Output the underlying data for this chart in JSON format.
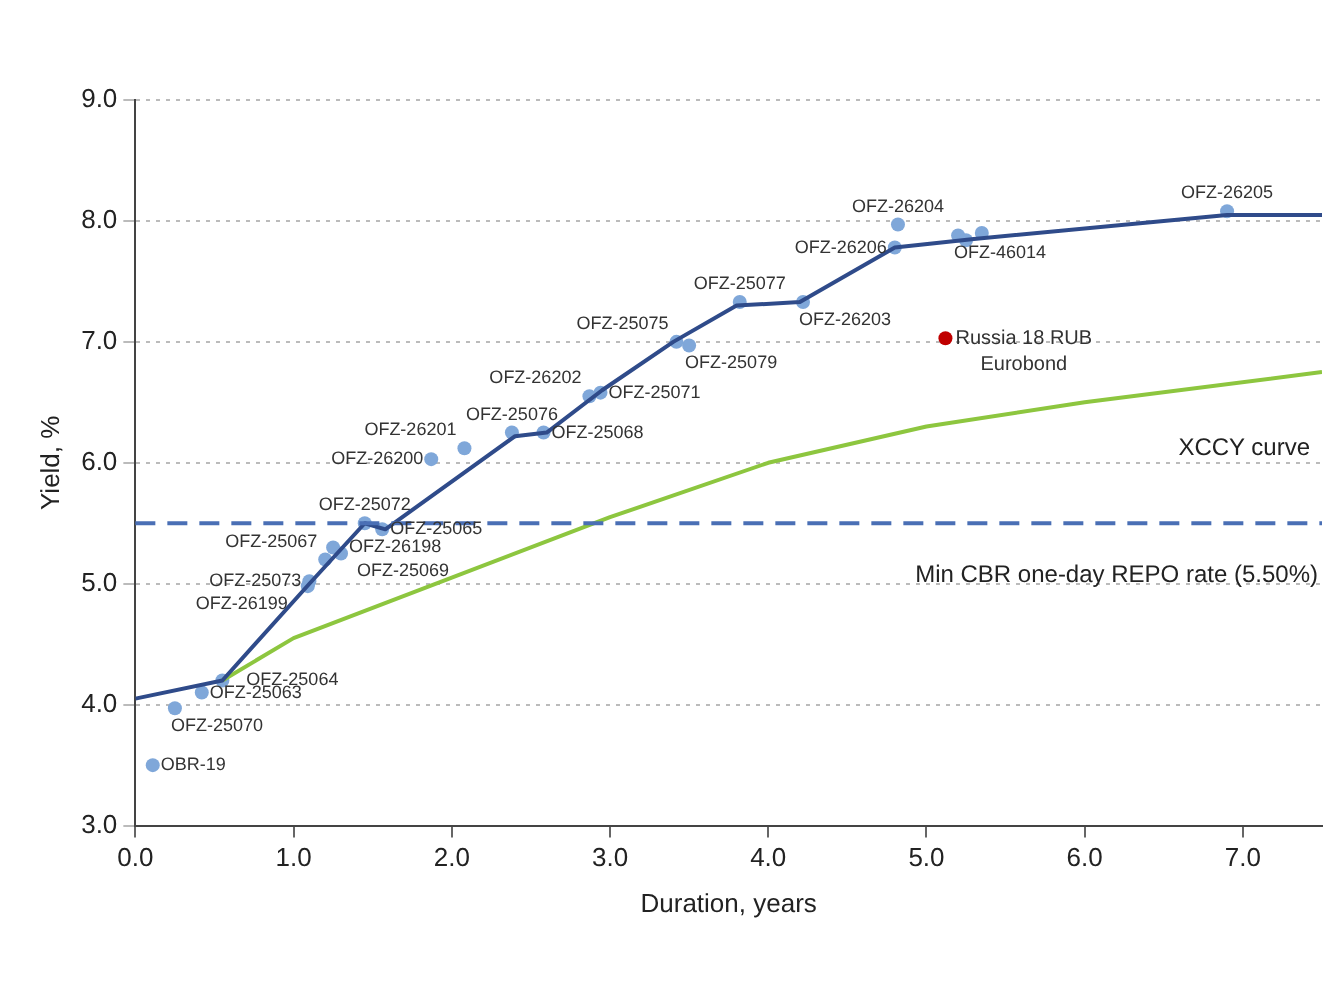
{
  "chart_data": {
    "type": "line",
    "xlabel": "Duration, years",
    "ylabel": "Yield, %",
    "xlim": [
      0,
      7.5
    ],
    "xticks": [
      {
        "value": 0,
        "label": "0.0"
      },
      {
        "value": 1,
        "label": "1.0"
      },
      {
        "value": 2,
        "label": "2.0"
      },
      {
        "value": 3,
        "label": "3.0"
      },
      {
        "value": 4,
        "label": "4.0"
      },
      {
        "value": 5,
        "label": "5.0"
      },
      {
        "value": 6,
        "label": "6.0"
      },
      {
        "value": 7,
        "label": "7.0"
      }
    ],
    "ylim": [
      3,
      9
    ],
    "yticks": [
      {
        "value": 3,
        "label": "3.0"
      },
      {
        "value": 4,
        "label": "4.0"
      },
      {
        "value": 5,
        "label": "5.0"
      },
      {
        "value": 6,
        "label": "6.0"
      },
      {
        "value": 7,
        "label": "7.0"
      },
      {
        "value": 8,
        "label": "8.0"
      },
      {
        "value": 9,
        "label": "9.0"
      }
    ],
    "grid": "y",
    "legend": false,
    "series": [
      {
        "type": "line",
        "color": "#2f4b8a",
        "marker": "none",
        "x": [
          0,
          0.55,
          1.1,
          1.45,
          1.58,
          2.4,
          2.6,
          2.95,
          3.4,
          3.8,
          4.2,
          4.8,
          5.3,
          6.9,
          7.5
        ],
        "values": [
          4.05,
          4.2,
          5.0,
          5.5,
          5.45,
          6.22,
          6.25,
          6.6,
          7.0,
          7.3,
          7.33,
          7.78,
          7.85,
          8.05,
          8.05
        ]
      },
      {
        "type": "line",
        "name": "XCCY curve",
        "color": "#8dc63f",
        "marker": "none",
        "x": [
          0.55,
          1.0,
          2.0,
          3.0,
          4.0,
          5.0,
          6.0,
          7.5
        ],
        "values": [
          4.2,
          4.55,
          5.05,
          5.55,
          6.0,
          6.3,
          6.5,
          6.75
        ]
      },
      {
        "type": "scatter",
        "color": "#7fa7d9",
        "marker": "circle",
        "x": [
          0.11,
          0.25,
          0.42,
          0.55,
          1.09,
          1.1,
          1.2,
          1.25,
          1.3,
          1.45,
          1.56,
          1.87,
          2.08,
          2.38,
          2.58,
          2.87,
          2.94,
          3.42,
          3.5,
          3.82,
          4.22,
          4.8,
          4.82,
          5.2,
          5.25,
          5.35,
          6.9
        ],
        "values": [
          3.5,
          3.97,
          4.1,
          4.2,
          4.98,
          5.02,
          5.2,
          5.3,
          5.25,
          5.5,
          5.45,
          6.03,
          6.12,
          6.25,
          6.25,
          6.55,
          6.58,
          7.0,
          6.97,
          7.33,
          7.33,
          7.78,
          7.97,
          7.88,
          7.84,
          7.9,
          8.08
        ],
        "value_labels": [
          "OBR-19",
          "OFZ-25070",
          "OFZ-25063",
          "OFZ-25064",
          "OFZ-26199",
          "OFZ-25073",
          "OFZ-25067",
          "OFZ-26198",
          "OFZ-25069",
          "OFZ-25072",
          "OFZ-25065",
          "OFZ-26200",
          "OFZ-26201",
          "OFZ-25076",
          "OFZ-25068",
          "OFZ-26202",
          "OFZ-25071",
          "OFZ-25075",
          "OFZ-25079",
          "OFZ-25077",
          "OFZ-26203",
          "OFZ-26206",
          "OFZ-26204",
          "OFZ-46014",
          null,
          null,
          "OFZ-26205"
        ]
      },
      {
        "type": "scatter",
        "name": "Russia 18 RUB Eurobond",
        "color": "#c00000",
        "marker": "circle",
        "x": [
          5.12
        ],
        "values": [
          7.03
        ]
      }
    ],
    "ref_lines": [
      {
        "axis": "y",
        "value": 5.5,
        "label": "Min CBR one-day REPO rate (5.50%)",
        "color": "#4a6fb5",
        "line_style": "dashed"
      }
    ]
  }
}
